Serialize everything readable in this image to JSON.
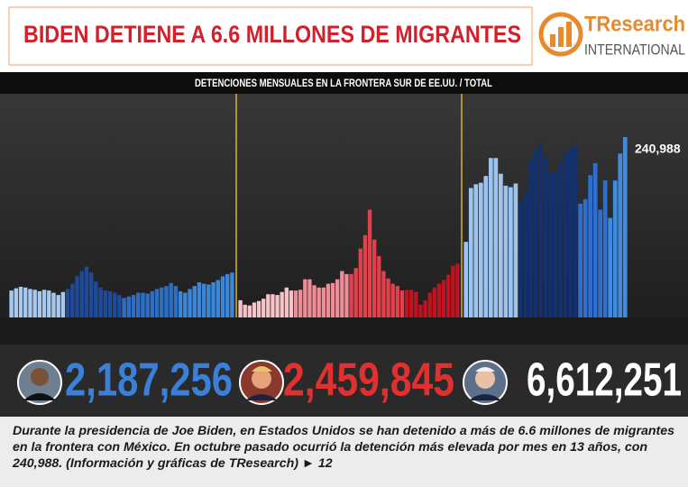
{
  "header": {
    "title": "BIDEN DETIENE A 6.6 MILLONES DE MIGRANTES",
    "logo_name": "TResearch",
    "logo_sub": "INTERNATIONAL"
  },
  "chart_data": {
    "type": "bar",
    "subtitle": "DETENCIONES MENSUALES EN LA FRONTERA SUR DE EE.UU. / TOTAL",
    "annotation": {
      "value": 240988,
      "label": "240,988"
    },
    "eras": [
      {
        "total": "2,187,256",
        "total_color": "#3a80d8",
        "groups": [
          {
            "color": "#a7c9ee",
            "values": [
              36000,
              39000,
              41000,
              40000,
              38000,
              37000,
              35000,
              37000,
              36000,
              33000,
              30000,
              34000
            ]
          },
          {
            "color": "#1f4a9a",
            "values": [
              38000,
              45000,
              55000,
              62000,
              68000,
              60000,
              48000,
              40000,
              36000,
              35000,
              33000,
              30000
            ]
          },
          {
            "color": "#2d6fc4",
            "values": [
              26000,
              28000,
              30000,
              33000,
              33000,
              32000,
              35000,
              38000,
              40000,
              42000,
              46000,
              42000
            ]
          },
          {
            "color": "#3b86d8",
            "values": [
              35000,
              33000,
              38000,
              42000,
              47000,
              45000,
              44000,
              47000,
              50000,
              55000,
              58000,
              60000
            ]
          }
        ]
      },
      {
        "total": "2,459,845",
        "total_color": "#e0302f",
        "groups": [
          {
            "color": "#f5c3c8",
            "values": [
              23000,
              17000,
              16000,
              20000,
              22000,
              25000,
              31000,
              31000,
              30000,
              34000,
              40000,
              36000
            ]
          },
          {
            "color": "#ee8c97",
            "values": [
              36000,
              37000,
              51000,
              51000,
              43000,
              40000,
              40000,
              45000,
              46000,
              51000,
              62000,
              58000
            ]
          },
          {
            "color": "#e2404a",
            "values": [
              58000,
              66000,
              92000,
              110000,
              144000,
              104000,
              82000,
              62000,
              52000,
              45000,
              42000,
              36000
            ]
          },
          {
            "color": "#c1121f",
            "values": [
              37000,
              37000,
              34000,
              17000,
              23000,
              33000,
              40000,
              45000,
              50000,
              57000,
              69000,
              72000
            ]
          }
        ]
      },
      {
        "total": "6,612,251",
        "total_color": "#ffffff",
        "groups": [
          {
            "color": "#9dc4ee",
            "values": [
              101000,
              173000,
              178000,
              180000,
              189000,
              213000,
              213000,
              192000,
              176000,
              174000,
              179000
            ]
          },
          {
            "color": "#13306f",
            "values": [
              154000,
              166000,
              211000,
              225000,
              232000,
              215000,
              194000,
              196000,
              208000,
              220000,
              226000,
              230000
            ]
          },
          {
            "color": "#2f6fd0",
            "values": [
              152000,
              158000,
              190000,
              206000,
              144000,
              183000
            ]
          },
          {
            "color": "#3f8be0",
            "values": [
              133000,
              183000,
              219000,
              240988
            ]
          }
        ]
      }
    ]
  },
  "caption": "Durante la presidencia de Joe Biden, en Estados Unidos se han detenido a más de 6.6 millones de migrantes en la frontera con México. En octubre pasado ocurrió la detención más elevada por mes en 13 años, con 240,988. (Información y gráficas de TResearch) ► 12"
}
